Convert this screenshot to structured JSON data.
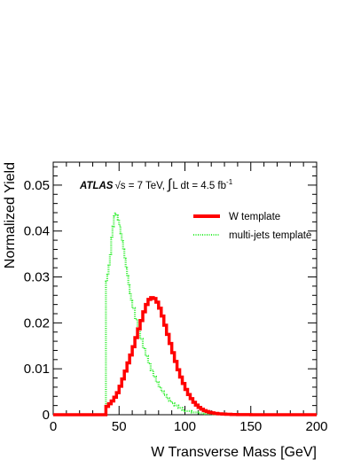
{
  "chart_data": {
    "type": "line",
    "title": "",
    "xlabel": "W Transverse Mass [GeV]",
    "ylabel": "Normalized Yield",
    "xlim": [
      0,
      200
    ],
    "ylim": [
      0,
      0.055
    ],
    "x_ticks": [
      "0",
      "50",
      "100",
      "150",
      "200"
    ],
    "y_ticks": [
      "0",
      "0.01",
      "0.02",
      "0.03",
      "0.04",
      "0.05"
    ],
    "annotation": {
      "experiment": "ATLAS",
      "energy": "√s = 7 TeV,",
      "integral_sign": "∫",
      "luminosity": "L dt = 4.5 fb",
      "luminosity_exp": "-1"
    },
    "legend_position": "top-right",
    "series": [
      {
        "name": "W template",
        "color": "#ff0000",
        "style": "solid-thick",
        "x": [
          0,
          39,
          40,
          42,
          44,
          46,
          48,
          50,
          52,
          54,
          56,
          58,
          60,
          62,
          64,
          66,
          68,
          70,
          72,
          74,
          76,
          78,
          80,
          82,
          84,
          86,
          88,
          90,
          92,
          94,
          96,
          98,
          100,
          102,
          104,
          106,
          108,
          110,
          112,
          114,
          116,
          118,
          120,
          122,
          125,
          128,
          131,
          135,
          140,
          150,
          160,
          180,
          200
        ],
        "y": [
          0,
          0,
          0.0018,
          0.0024,
          0.003,
          0.0038,
          0.0048,
          0.0062,
          0.0078,
          0.0095,
          0.0113,
          0.013,
          0.0148,
          0.0168,
          0.0187,
          0.0205,
          0.0224,
          0.024,
          0.0251,
          0.0255,
          0.0253,
          0.0245,
          0.0232,
          0.0215,
          0.0195,
          0.0175,
          0.0155,
          0.0135,
          0.0116,
          0.0098,
          0.0082,
          0.0068,
          0.0055,
          0.0044,
          0.0035,
          0.0027,
          0.0021,
          0.0016,
          0.0012,
          0.0009,
          0.0007,
          0.0005,
          0.0004,
          0.0003,
          0.0002,
          0.00015,
          0.0001,
          5e-05,
          3e-05,
          1e-05,
          0,
          0,
          0
        ]
      },
      {
        "name": "multi-jets template",
        "color": "#33ee33",
        "style": "dotted",
        "x": [
          0,
          39,
          40,
          41,
          42,
          43,
          44,
          45,
          46,
          47,
          48,
          49,
          50,
          51,
          52,
          53,
          54,
          55,
          56,
          57,
          58,
          59,
          60,
          62,
          64,
          66,
          68,
          70,
          72,
          74,
          76,
          78,
          80,
          82,
          84,
          86,
          88,
          90,
          92,
          95,
          98,
          100,
          105,
          110,
          115,
          120,
          130,
          140,
          160,
          200
        ],
        "y": [
          0,
          0,
          0.029,
          0.0305,
          0.0325,
          0.035,
          0.0385,
          0.041,
          0.0432,
          0.0438,
          0.0434,
          0.0425,
          0.0412,
          0.0395,
          0.0378,
          0.036,
          0.034,
          0.032,
          0.0302,
          0.0282,
          0.0265,
          0.0248,
          0.0232,
          0.0208,
          0.0186,
          0.0165,
          0.0145,
          0.0128,
          0.0112,
          0.0097,
          0.0083,
          0.0071,
          0.006,
          0.0051,
          0.0043,
          0.0036,
          0.003,
          0.0025,
          0.002,
          0.0015,
          0.001,
          0.0008,
          0.0005,
          0.0003,
          0.0002,
          0.0001,
          5e-05,
          2e-05,
          0,
          0
        ]
      }
    ]
  }
}
